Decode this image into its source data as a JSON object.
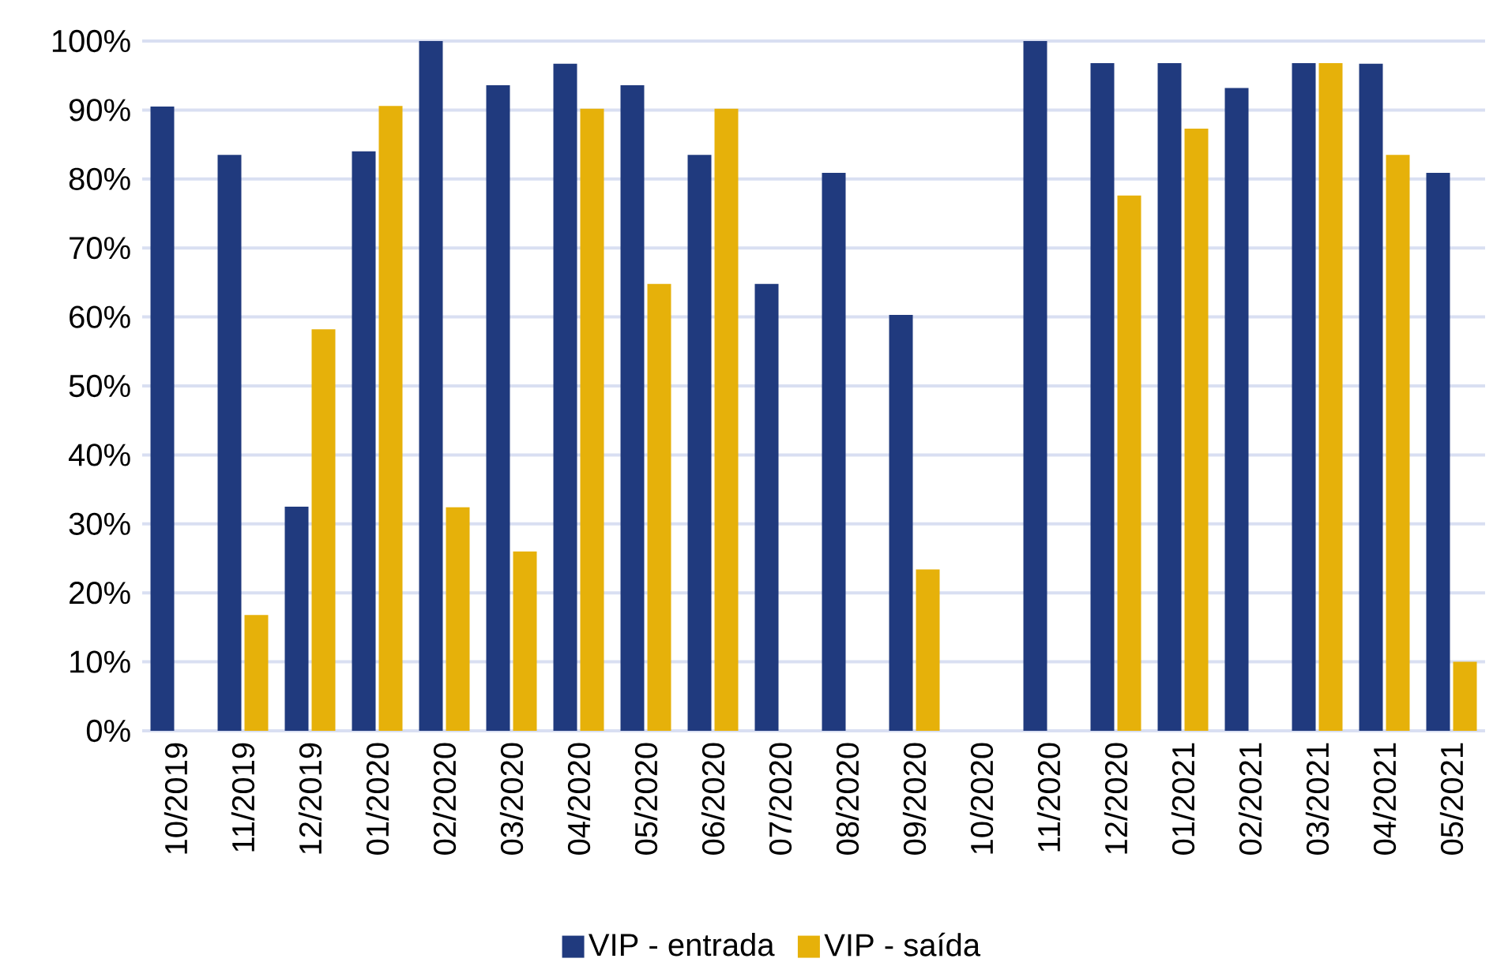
{
  "chart_data": {
    "type": "bar",
    "categories": [
      "10/2019",
      "11/2019",
      "12/2019",
      "01/2020",
      "02/2020",
      "03/2020",
      "04/2020",
      "05/2020",
      "06/2020",
      "07/2020",
      "08/2020",
      "09/2020",
      "10/2020",
      "11/2020",
      "12/2020",
      "01/2021",
      "02/2021",
      "03/2021",
      "04/2021",
      "05/2021"
    ],
    "series": [
      {
        "name": "VIP - entrada",
        "color": "#203a7e",
        "values": [
          90.5,
          83.5,
          32.5,
          84,
          100,
          93.6,
          96.7,
          93.6,
          83.5,
          64.8,
          80.9,
          60.3,
          null,
          100,
          96.8,
          96.8,
          93.2,
          96.8,
          96.7,
          80.9
        ]
      },
      {
        "name": "VIP - saída",
        "color": "#e6b10a",
        "values": [
          null,
          16.8,
          58.2,
          90.6,
          32.4,
          26.0,
          90.2,
          64.8,
          90.2,
          null,
          null,
          23.4,
          null,
          null,
          77.6,
          87.3,
          null,
          96.8,
          83.5,
          10.0
        ]
      }
    ],
    "ylim": [
      0,
      100
    ],
    "yticks": [
      {
        "value": 0,
        "label": "0%"
      },
      {
        "value": 10,
        "label": "10%"
      },
      {
        "value": 20,
        "label": "20%"
      },
      {
        "value": 30,
        "label": "30%"
      },
      {
        "value": 40,
        "label": "40%"
      },
      {
        "value": 50,
        "label": "50%"
      },
      {
        "value": 60,
        "label": "60%"
      },
      {
        "value": 70,
        "label": "70%"
      },
      {
        "value": 80,
        "label": "80%"
      },
      {
        "value": 90,
        "label": "90%"
      },
      {
        "value": 100,
        "label": "100%"
      }
    ],
    "grid": "y",
    "legend": "bottom"
  }
}
